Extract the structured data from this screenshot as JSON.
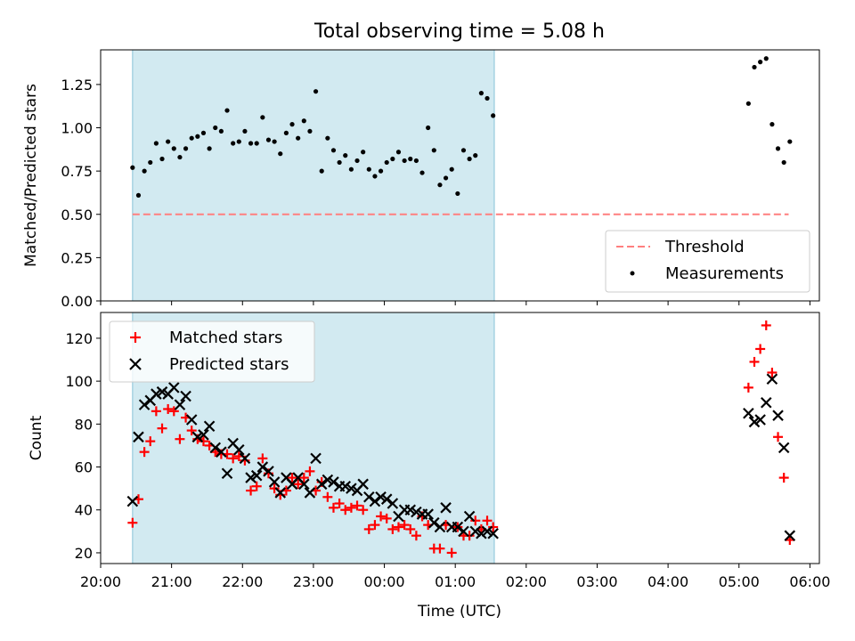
{
  "chart_data": [
    {
      "type": "scatter",
      "title": "Total observing time = 5.08 h",
      "xlabel": "",
      "ylabel": "Matched/Predicted stars",
      "xlim": [
        "20:00",
        "06:08"
      ],
      "ylim": [
        0,
        1.45
      ],
      "yticks": [
        "0.00",
        "0.25",
        "0.50",
        "0.75",
        "1.00",
        "1.25"
      ],
      "legend_position": "lower-right",
      "shaded_span": [
        "20:27",
        "01:33"
      ],
      "shade_color": "#add8e6",
      "threshold": {
        "name": "Threshold",
        "value": 0.5,
        "x_range": [
          "20:27",
          "05:42"
        ],
        "color": "#ff7f7f",
        "style": "dashed"
      },
      "series": [
        {
          "name": "Measurements",
          "marker": "dot",
          "color": "#000000",
          "x": [
            "20:27",
            "20:32",
            "20:37",
            "20:42",
            "20:47",
            "20:52",
            "20:57",
            "21:02",
            "21:07",
            "21:12",
            "21:17",
            "21:22",
            "21:27",
            "21:32",
            "21:37",
            "21:42",
            "21:47",
            "21:52",
            "21:57",
            "22:02",
            "22:07",
            "22:12",
            "22:17",
            "22:22",
            "22:27",
            "22:32",
            "22:37",
            "22:42",
            "22:47",
            "22:52",
            "22:57",
            "23:02",
            "23:07",
            "23:12",
            "23:17",
            "23:22",
            "23:27",
            "23:32",
            "23:37",
            "23:42",
            "23:47",
            "23:52",
            "23:57",
            "00:02",
            "00:07",
            "00:12",
            "00:17",
            "00:22",
            "00:27",
            "00:32",
            "00:37",
            "00:42",
            "00:47",
            "00:52",
            "00:57",
            "01:02",
            "01:07",
            "01:12",
            "01:17",
            "01:22",
            "01:27",
            "01:32",
            "05:08",
            "05:13",
            "05:18",
            "05:23",
            "05:28",
            "05:33",
            "05:38",
            "05:43"
          ],
          "y": [
            0.77,
            0.61,
            0.75,
            0.8,
            0.91,
            0.82,
            0.92,
            0.88,
            0.83,
            0.88,
            0.94,
            0.95,
            0.97,
            0.88,
            1.0,
            0.98,
            1.1,
            0.91,
            0.92,
            0.98,
            0.91,
            0.91,
            1.06,
            0.93,
            0.92,
            0.85,
            0.97,
            1.02,
            0.94,
            1.04,
            0.98,
            1.21,
            0.75,
            0.94,
            0.87,
            0.8,
            0.84,
            0.76,
            0.81,
            0.86,
            0.76,
            0.72,
            0.75,
            0.8,
            0.82,
            0.86,
            0.81,
            0.82,
            0.81,
            0.74,
            1.0,
            0.87,
            0.67,
            0.71,
            0.76,
            0.62,
            0.87,
            0.82,
            0.84,
            1.2,
            1.17,
            1.07,
            1.14,
            1.35,
            1.38,
            1.4,
            1.02,
            0.88,
            0.8,
            0.92
          ]
        }
      ]
    },
    {
      "type": "scatter",
      "title": "",
      "xlabel": "Time (UTC)",
      "ylabel": "Count",
      "xlim": [
        "20:00",
        "06:08"
      ],
      "ylim": [
        15,
        132
      ],
      "xticks": [
        "20:00",
        "21:00",
        "22:00",
        "23:00",
        "00:00",
        "01:00",
        "02:00",
        "03:00",
        "04:00",
        "05:00",
        "06:00"
      ],
      "yticks": [
        "20",
        "40",
        "60",
        "80",
        "100",
        "120"
      ],
      "legend_position": "upper-left",
      "shaded_span": [
        "20:27",
        "01:33"
      ],
      "series": [
        {
          "name": "Matched stars",
          "marker": "plus",
          "color": "#ff0000",
          "x": [
            "20:27",
            "20:32",
            "20:37",
            "20:42",
            "20:47",
            "20:52",
            "20:57",
            "21:02",
            "21:07",
            "21:12",
            "21:17",
            "21:22",
            "21:27",
            "21:32",
            "21:37",
            "21:42",
            "21:47",
            "21:52",
            "21:57",
            "22:02",
            "22:07",
            "22:12",
            "22:17",
            "22:22",
            "22:27",
            "22:32",
            "22:37",
            "22:42",
            "22:47",
            "22:52",
            "22:57",
            "23:02",
            "23:07",
            "23:12",
            "23:17",
            "23:22",
            "23:27",
            "23:32",
            "23:37",
            "23:42",
            "23:47",
            "23:52",
            "23:57",
            "00:02",
            "00:07",
            "00:12",
            "00:17",
            "00:22",
            "00:27",
            "00:32",
            "00:37",
            "00:42",
            "00:47",
            "00:52",
            "00:57",
            "01:02",
            "01:07",
            "01:12",
            "01:17",
            "01:22",
            "01:27",
            "01:32",
            "05:08",
            "05:13",
            "05:18",
            "05:23",
            "05:28",
            "05:33",
            "05:38",
            "05:43"
          ],
          "y": [
            34,
            45,
            67,
            72,
            86,
            78,
            87,
            86,
            73,
            83,
            77,
            73,
            72,
            70,
            67,
            66,
            66,
            64,
            65,
            63,
            49,
            51,
            64,
            57,
            50,
            47,
            49,
            55,
            52,
            55,
            58,
            49,
            53,
            46,
            41,
            43,
            40,
            41,
            42,
            40,
            31,
            33,
            37,
            36,
            31,
            32,
            33,
            31,
            28,
            37,
            33,
            22,
            22,
            33,
            20,
            32,
            28,
            28,
            35,
            31,
            35,
            32,
            97,
            109,
            115,
            126,
            104,
            74,
            55,
            26
          ]
        },
        {
          "name": "Predicted stars",
          "marker": "x",
          "color": "#000000",
          "x": [
            "20:27",
            "20:32",
            "20:37",
            "20:42",
            "20:47",
            "20:52",
            "20:57",
            "21:02",
            "21:07",
            "21:12",
            "21:17",
            "21:22",
            "21:27",
            "21:32",
            "21:37",
            "21:42",
            "21:47",
            "21:52",
            "21:57",
            "22:02",
            "22:07",
            "22:12",
            "22:17",
            "22:22",
            "22:27",
            "22:32",
            "22:37",
            "22:42",
            "22:47",
            "22:52",
            "22:57",
            "23:02",
            "23:07",
            "23:12",
            "23:17",
            "23:22",
            "23:27",
            "23:32",
            "23:37",
            "23:42",
            "23:47",
            "23:52",
            "23:57",
            "00:02",
            "00:07",
            "00:12",
            "00:17",
            "00:22",
            "00:27",
            "00:32",
            "00:37",
            "00:42",
            "00:47",
            "00:52",
            "00:57",
            "01:02",
            "01:07",
            "01:12",
            "01:17",
            "01:22",
            "01:27",
            "01:32",
            "05:08",
            "05:13",
            "05:18",
            "05:23",
            "05:28",
            "05:33",
            "05:38",
            "05:43"
          ],
          "y": [
            44,
            74,
            89,
            91,
            94,
            95,
            94,
            97,
            89,
            93,
            82,
            74,
            75,
            79,
            69,
            67,
            57,
            71,
            68,
            64,
            55,
            56,
            60,
            58,
            53,
            48,
            55,
            52,
            55,
            52,
            48,
            64,
            52,
            54,
            53,
            51,
            51,
            50,
            49,
            52,
            46,
            44,
            46,
            45,
            43,
            37,
            40,
            40,
            39,
            38,
            38,
            34,
            32,
            41,
            32,
            32,
            30,
            37,
            30,
            29,
            30,
            29,
            85,
            81,
            82,
            90,
            101,
            84,
            69,
            28
          ]
        }
      ]
    }
  ]
}
